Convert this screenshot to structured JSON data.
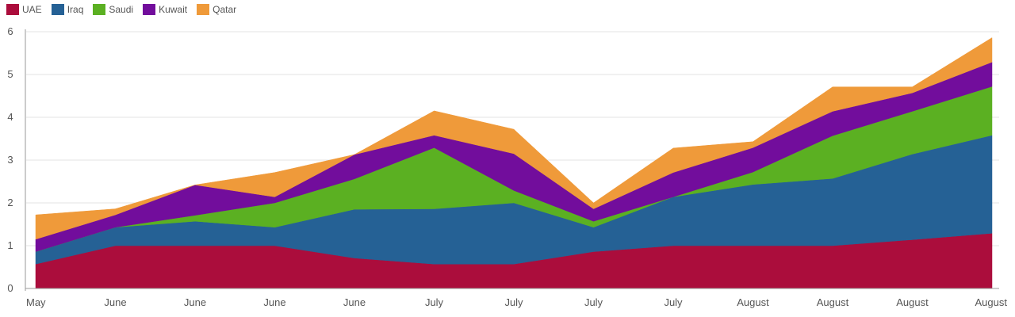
{
  "chart_data": {
    "type": "area",
    "stacked": true,
    "categories": [
      "May",
      "June",
      "June",
      "June",
      "June",
      "July",
      "July",
      "July",
      "July",
      "August",
      "August",
      "August",
      "August"
    ],
    "series": [
      {
        "name": "UAE",
        "color": "#ab0d3c",
        "values": [
          0.57,
          1.0,
          1.0,
          1.0,
          0.71,
          0.57,
          0.57,
          0.86,
          1.0,
          1.0,
          1.0,
          1.14,
          1.29
        ]
      },
      {
        "name": "Iraq",
        "color": "#256195",
        "values": [
          0.29,
          0.43,
          0.57,
          0.43,
          1.14,
          1.29,
          1.43,
          0.57,
          1.14,
          1.43,
          1.57,
          2.0,
          2.29
        ]
      },
      {
        "name": "Saudi",
        "color": "#5bb022",
        "values": [
          0.0,
          0.0,
          0.14,
          0.57,
          0.71,
          1.43,
          0.29,
          0.14,
          0.0,
          0.29,
          1.0,
          1.0,
          1.14
        ]
      },
      {
        "name": "Kuwait",
        "color": "#720d9c",
        "values": [
          0.29,
          0.29,
          0.71,
          0.14,
          0.57,
          0.29,
          0.86,
          0.29,
          0.57,
          0.57,
          0.57,
          0.43,
          0.57
        ]
      },
      {
        "name": "Qatar",
        "color": "#ef9a3a",
        "values": [
          0.57,
          0.14,
          0.0,
          0.57,
          0.0,
          0.57,
          0.57,
          0.14,
          0.57,
          0.14,
          0.57,
          0.14,
          0.57
        ]
      }
    ],
    "ylim": [
      0,
      6
    ],
    "yticks": [
      0,
      1,
      2,
      3,
      4,
      5,
      6
    ],
    "grid": true,
    "legend_position": "top-left"
  }
}
